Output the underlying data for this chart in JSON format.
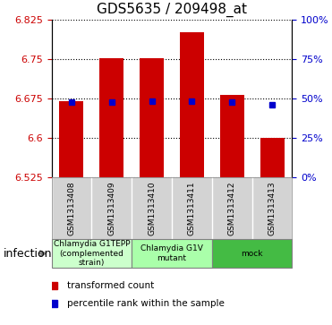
{
  "title": "GDS5635 / 209498_at",
  "samples": [
    "GSM1313408",
    "GSM1313409",
    "GSM1313410",
    "GSM1313411",
    "GSM1313412",
    "GSM1313413"
  ],
  "bar_bottoms": [
    6.525,
    6.525,
    6.525,
    6.525,
    6.525,
    6.525
  ],
  "bar_tops": [
    6.67,
    6.752,
    6.752,
    6.8,
    6.682,
    6.6
  ],
  "blue_y": [
    6.668,
    6.668,
    6.669,
    6.669,
    6.668,
    6.663
  ],
  "ylim": [
    6.525,
    6.825
  ],
  "yticks_left": [
    6.525,
    6.6,
    6.675,
    6.75,
    6.825
  ],
  "ytick_left_labels": [
    "6.525",
    "6.6",
    "6.675",
    "6.75",
    "6.825"
  ],
  "yticks_right_vals": [
    0,
    25,
    50,
    75,
    100
  ],
  "yticks_right_pos": [
    6.525,
    6.6,
    6.675,
    6.75,
    6.825
  ],
  "bar_color": "#cc0000",
  "blue_color": "#0000cc",
  "bar_width": 0.6,
  "groups": [
    {
      "label": "Chlamydia G1TEPP\n(complemented\nstrain)",
      "color": "#ccffcc",
      "samples": [
        0,
        1
      ]
    },
    {
      "label": "Chlamydia G1V\nmutant",
      "color": "#aaffaa",
      "samples": [
        2,
        3
      ]
    },
    {
      "label": "mock",
      "color": "#44bb44",
      "samples": [
        4,
        5
      ]
    }
  ],
  "infection_label": "infection",
  "legend_items": [
    {
      "color": "#cc0000",
      "label": "transformed count"
    },
    {
      "color": "#0000cc",
      "label": "percentile rank within the sample"
    }
  ],
  "left_tick_color": "#cc0000",
  "right_tick_color": "#0000cc",
  "figsize": [
    3.71,
    3.63
  ],
  "dpi": 100,
  "bg_color": "#d3d3d3"
}
